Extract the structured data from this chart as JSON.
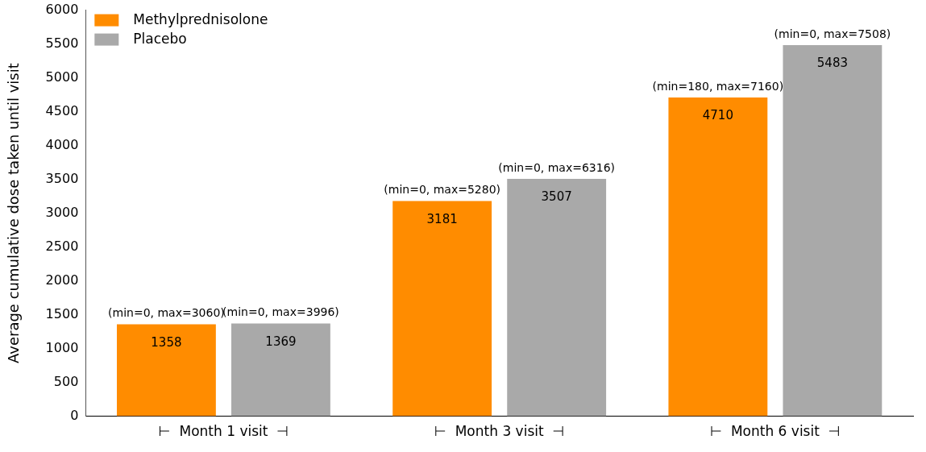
{
  "chart_data": {
    "type": "bar",
    "ylabel": "Average cumulative dose taken until visit",
    "categories": [
      "⊢  Month 1 visit  ⊣",
      "⊢  Month 3 visit  ⊣",
      "⊢  Month 6 visit  ⊣"
    ],
    "series": [
      {
        "name": "Methylprednisolone",
        "color": "#ff8c00",
        "values": [
          1358,
          3181,
          4710
        ]
      },
      {
        "name": "Placebo",
        "color": "#a9a9a9",
        "values": [
          1369,
          3507,
          5483
        ]
      }
    ],
    "ylim": [
      0,
      6000
    ],
    "yticks": [
      0,
      500,
      1000,
      1500,
      2000,
      2500,
      3000,
      3500,
      4000,
      4500,
      5000,
      5500,
      6000
    ],
    "data_labels": true,
    "legend": "top left",
    "annotations": [
      "(min=0, max=3060)",
      "(min=0, max=3996)",
      "(min=0, max=5280)",
      "(min=0, max=6316)",
      "(min=180, max=7160)",
      "(min=0, max=7508)"
    ]
  }
}
